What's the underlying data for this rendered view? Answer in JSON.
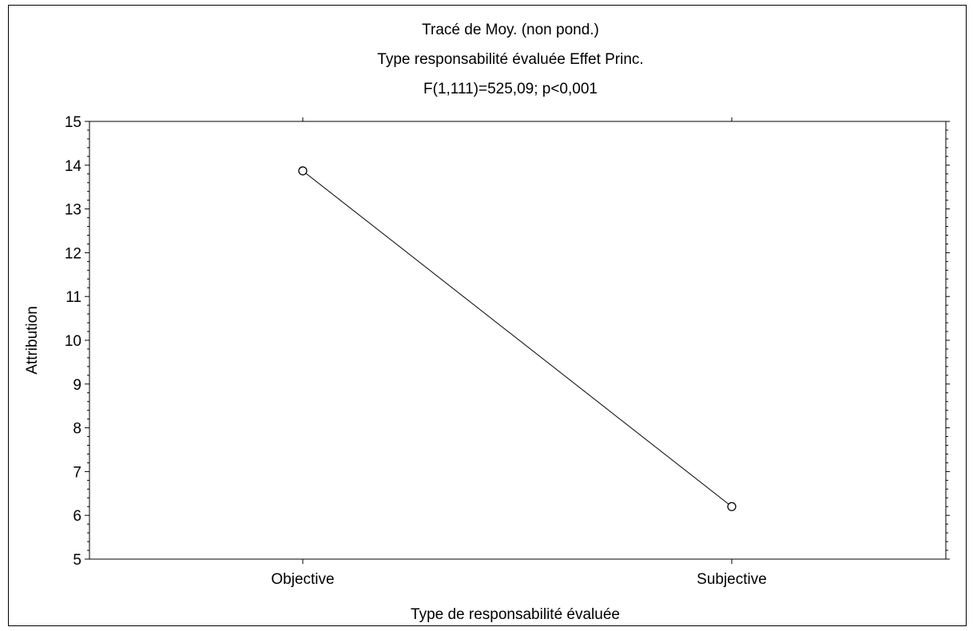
{
  "chart_data": {
    "type": "line",
    "title": [
      "Tracé de Moy. (non pond.)",
      "Type responsabilité évaluée Effet Princ.",
      "F(1,111)=525,09; p<0,001"
    ],
    "xlabel": "Type de responsabilité évaluée",
    "ylabel": "Attribution",
    "categories": [
      "Objective",
      "Subjective"
    ],
    "series": [
      {
        "values": [
          13.87,
          6.2
        ]
      }
    ],
    "ylim": [
      5,
      15
    ],
    "yticks": [
      5,
      6,
      7,
      8,
      9,
      10,
      11,
      12,
      13,
      14,
      15
    ],
    "grid": false,
    "legend": "none",
    "colors": {
      "line": "#000000",
      "marker_fill": "#ffffff",
      "frame": "#000000"
    }
  }
}
